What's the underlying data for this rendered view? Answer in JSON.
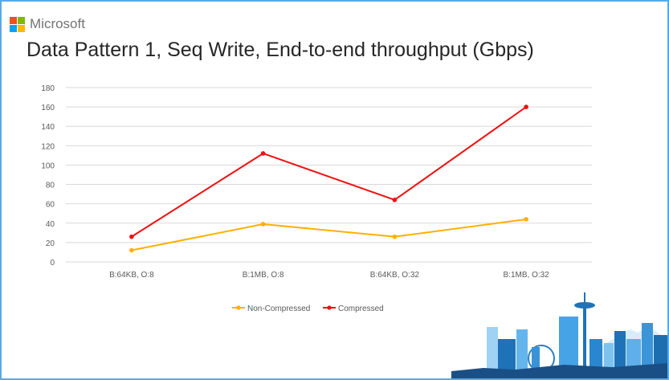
{
  "brand": {
    "name": "Microsoft",
    "logo_colors": [
      "#f25022",
      "#7fba00",
      "#00a4ef",
      "#ffb900"
    ]
  },
  "slide": {
    "border_color": "#5aa9e6",
    "decoration": "seattle-skyline"
  },
  "chart_data": {
    "type": "line",
    "title": "Data Pattern 1, Seq Write, End-to-end throughput (Gbps)",
    "xlabel": "",
    "ylabel": "",
    "categories": [
      "B:64KB, O:8",
      "B:1MB, O:8",
      "B:64KB, O:32",
      "B:1MB, O:32"
    ],
    "series": [
      {
        "name": "Non-Compressed",
        "color": "#ffb000",
        "values": [
          12,
          39,
          26,
          44
        ]
      },
      {
        "name": "Compressed",
        "color": "#ee1111",
        "values": [
          26,
          112,
          64,
          160
        ]
      }
    ],
    "ylim": [
      0,
      180
    ],
    "yticks": [
      0,
      20,
      40,
      60,
      80,
      100,
      120,
      140,
      160,
      180
    ],
    "grid": true,
    "legend_position": "bottom"
  }
}
